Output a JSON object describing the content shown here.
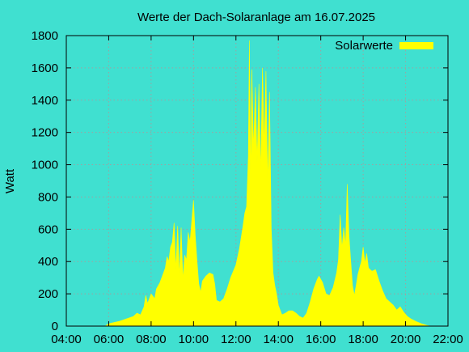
{
  "chart_data": {
    "type": "area",
    "title": "Werte der Dach-Solaranlage am 16.07.2025",
    "xlabel": "",
    "ylabel": "Watt",
    "xlim": [
      "04:00",
      "22:00"
    ],
    "ylim": [
      0,
      1800
    ],
    "x_ticks": [
      "04:00",
      "06:00",
      "08:00",
      "10:00",
      "12:00",
      "14:00",
      "16:00",
      "18:00",
      "20:00",
      "22:00"
    ],
    "y_ticks": [
      0,
      200,
      400,
      600,
      800,
      1000,
      1200,
      1400,
      1600,
      1800
    ],
    "grid": true,
    "legend_position": "top-right",
    "series": [
      {
        "name": "Solarwerte",
        "color": "#ffff00",
        "points": [
          [
            "05:50",
            0
          ],
          [
            "06:00",
            15
          ],
          [
            "06:30",
            30
          ],
          [
            "06:50",
            45
          ],
          [
            "07:10",
            60
          ],
          [
            "07:20",
            80
          ],
          [
            "07:30",
            70
          ],
          [
            "07:40",
            120
          ],
          [
            "07:45",
            190
          ],
          [
            "07:50",
            140
          ],
          [
            "08:00",
            200
          ],
          [
            "08:10",
            170
          ],
          [
            "08:15",
            230
          ],
          [
            "08:25",
            270
          ],
          [
            "08:35",
            330
          ],
          [
            "08:40",
            360
          ],
          [
            "08:45",
            430
          ],
          [
            "08:50",
            400
          ],
          [
            "08:55",
            490
          ],
          [
            "09:00",
            520
          ],
          [
            "09:05",
            640
          ],
          [
            "09:10",
            350
          ],
          [
            "09:15",
            620
          ],
          [
            "09:20",
            310
          ],
          [
            "09:25",
            610
          ],
          [
            "09:30",
            290
          ],
          [
            "09:35",
            440
          ],
          [
            "09:40",
            410
          ],
          [
            "09:45",
            580
          ],
          [
            "09:50",
            520
          ],
          [
            "09:55",
            650
          ],
          [
            "10:00",
            780
          ],
          [
            "10:05",
            560
          ],
          [
            "10:10",
            400
          ],
          [
            "10:15",
            260
          ],
          [
            "10:20",
            210
          ],
          [
            "10:25",
            280
          ],
          [
            "10:35",
            310
          ],
          [
            "10:45",
            330
          ],
          [
            "10:55",
            320
          ],
          [
            "11:00",
            260
          ],
          [
            "11:05",
            160
          ],
          [
            "11:15",
            150
          ],
          [
            "11:25",
            170
          ],
          [
            "11:35",
            230
          ],
          [
            "11:45",
            300
          ],
          [
            "12:00",
            380
          ],
          [
            "12:10",
            480
          ],
          [
            "12:20",
            620
          ],
          [
            "12:25",
            700
          ],
          [
            "12:30",
            740
          ],
          [
            "12:35",
            1050
          ],
          [
            "12:38",
            1770
          ],
          [
            "12:42",
            900
          ],
          [
            "12:45",
            1590
          ],
          [
            "12:50",
            1100
          ],
          [
            "12:55",
            1480
          ],
          [
            "13:00",
            1020
          ],
          [
            "13:05",
            1500
          ],
          [
            "13:10",
            950
          ],
          [
            "13:15",
            1600
          ],
          [
            "13:20",
            1120
          ],
          [
            "13:25",
            1580
          ],
          [
            "13:30",
            880
          ],
          [
            "13:35",
            1450
          ],
          [
            "13:40",
            600
          ],
          [
            "13:45",
            330
          ],
          [
            "13:50",
            250
          ],
          [
            "13:55",
            200
          ],
          [
            "14:00",
            130
          ],
          [
            "14:10",
            70
          ],
          [
            "14:20",
            80
          ],
          [
            "14:30",
            95
          ],
          [
            "14:40",
            95
          ],
          [
            "14:50",
            80
          ],
          [
            "15:00",
            60
          ],
          [
            "15:10",
            50
          ],
          [
            "15:20",
            80
          ],
          [
            "15:30",
            150
          ],
          [
            "15:40",
            230
          ],
          [
            "15:50",
            290
          ],
          [
            "15:55",
            310
          ],
          [
            "16:05",
            270
          ],
          [
            "16:15",
            200
          ],
          [
            "16:25",
            190
          ],
          [
            "16:35",
            240
          ],
          [
            "16:45",
            330
          ],
          [
            "16:50",
            410
          ],
          [
            "16:55",
            690
          ],
          [
            "17:00",
            480
          ],
          [
            "17:05",
            610
          ],
          [
            "17:10",
            500
          ],
          [
            "17:15",
            880
          ],
          [
            "17:20",
            560
          ],
          [
            "17:25",
            400
          ],
          [
            "17:30",
            250
          ],
          [
            "17:35",
            190
          ],
          [
            "17:40",
            250
          ],
          [
            "17:45",
            320
          ],
          [
            "17:50",
            360
          ],
          [
            "17:55",
            400
          ],
          [
            "18:00",
            490
          ],
          [
            "18:05",
            390
          ],
          [
            "18:10",
            450
          ],
          [
            "18:15",
            360
          ],
          [
            "18:25",
            340
          ],
          [
            "18:35",
            350
          ],
          [
            "18:45",
            280
          ],
          [
            "18:55",
            220
          ],
          [
            "19:05",
            170
          ],
          [
            "19:15",
            150
          ],
          [
            "19:25",
            130
          ],
          [
            "19:35",
            100
          ],
          [
            "19:45",
            120
          ],
          [
            "19:55",
            85
          ],
          [
            "20:05",
            60
          ],
          [
            "20:15",
            45
          ],
          [
            "20:30",
            28
          ],
          [
            "20:45",
            15
          ],
          [
            "21:00",
            5
          ],
          [
            "21:10",
            0
          ]
        ]
      }
    ]
  }
}
